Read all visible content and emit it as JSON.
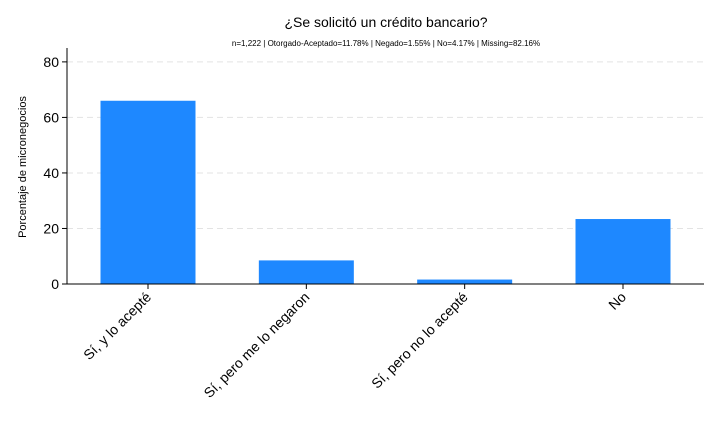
{
  "chart_data": {
    "type": "bar",
    "title": "¿Se solicitó un crédito bancario?",
    "subtitle": "n=1,222 | Otorgado-Aceptado=11.78% | Negado=1.55% | No=4.17% | Missing=82.16%",
    "xlabel": "",
    "ylabel": "Porcentaje de micronegocios",
    "categories": [
      "Sí, y lo acepté",
      "Sí, pero me lo negaron",
      "Sí, pero no lo acepté",
      "No"
    ],
    "values": [
      66.0,
      8.5,
      1.6,
      23.4
    ],
    "ylim": [
      0,
      85
    ],
    "yticks": [
      0,
      20,
      40,
      60,
      80
    ],
    "grid": true,
    "bar_color": "#1e88ff",
    "grid_color": "#e3e3e3"
  }
}
